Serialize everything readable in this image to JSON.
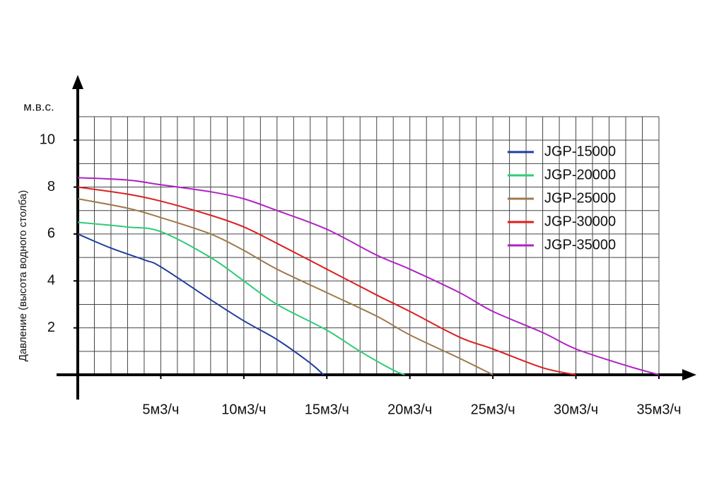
{
  "chart_data": {
    "type": "line",
    "y_unit": "м.в.с.",
    "y_label": "Давление (высота водного столба)",
    "xlim": [
      0,
      35
    ],
    "ylim": [
      0,
      11
    ],
    "xticks": [
      {
        "value": 5,
        "label": "5м3/ч"
      },
      {
        "value": 10,
        "label": "10м3/ч"
      },
      {
        "value": 15,
        "label": "15м3/ч"
      },
      {
        "value": 20,
        "label": "20м3/ч"
      },
      {
        "value": 25,
        "label": "25м3/ч"
      },
      {
        "value": 30,
        "label": "30м3/ч"
      },
      {
        "value": 35,
        "label": "35м3/ч"
      }
    ],
    "yticks": [
      2,
      4,
      6,
      8,
      10
    ],
    "x_grid": [
      1,
      2,
      3,
      4,
      5,
      6,
      7,
      8,
      9,
      10,
      11,
      12,
      13,
      14,
      15,
      16,
      17,
      18,
      19,
      20,
      21,
      22,
      23,
      24,
      25,
      26,
      27,
      28,
      29,
      30,
      31,
      32,
      33,
      34,
      35
    ],
    "y_grid": [
      1,
      2,
      3,
      4,
      5,
      6,
      7,
      8,
      9,
      10,
      11
    ],
    "legend": "top-right",
    "series": [
      {
        "name": "JGP-15000",
        "color": "#1f3f9f",
        "x": [
          0,
          2,
          4,
          5,
          8,
          10,
          12,
          14,
          14.8
        ],
        "values": [
          6.0,
          5.4,
          4.9,
          4.6,
          3.2,
          2.3,
          1.5,
          0.5,
          0
        ]
      },
      {
        "name": "JGP-20000",
        "color": "#2ecc77",
        "x": [
          0,
          3,
          5,
          8,
          10,
          12,
          15,
          17,
          19,
          19.7
        ],
        "values": [
          6.5,
          6.3,
          6.1,
          5.0,
          4.0,
          3.0,
          1.9,
          1.0,
          0.2,
          0
        ]
      },
      {
        "name": "JGP-25000",
        "color": "#a07a4c",
        "x": [
          0,
          3,
          5,
          8,
          10,
          12,
          15,
          18,
          20,
          23,
          25
        ],
        "values": [
          7.5,
          7.1,
          6.7,
          6.0,
          5.3,
          4.5,
          3.5,
          2.5,
          1.7,
          0.7,
          0
        ]
      },
      {
        "name": "JGP-30000",
        "color": "#dd1f1f",
        "x": [
          0,
          3,
          5,
          8,
          10,
          12,
          15,
          18,
          20,
          23,
          25,
          28,
          30
        ],
        "values": [
          8.0,
          7.7,
          7.4,
          6.8,
          6.3,
          5.6,
          4.5,
          3.4,
          2.7,
          1.6,
          1.1,
          0.3,
          0
        ]
      },
      {
        "name": "JGP-35000",
        "color": "#b022c4",
        "x": [
          0,
          3,
          5,
          8,
          10,
          12,
          15,
          18,
          20,
          23,
          25,
          28,
          30,
          33,
          35
        ],
        "values": [
          8.4,
          8.3,
          8.1,
          7.8,
          7.5,
          7.0,
          6.2,
          5.1,
          4.5,
          3.5,
          2.7,
          1.8,
          1.1,
          0.4,
          0
        ]
      }
    ]
  }
}
